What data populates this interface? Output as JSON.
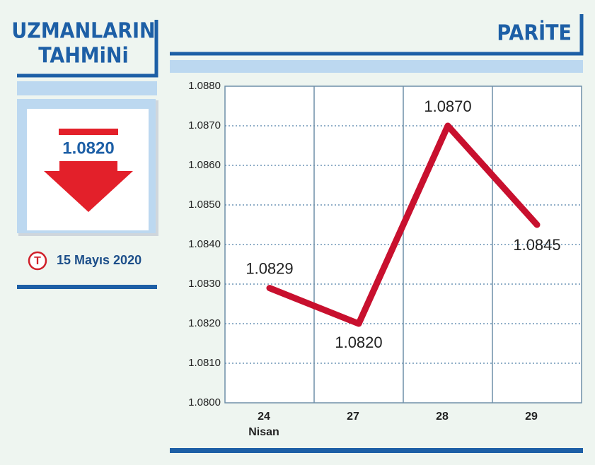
{
  "forecast": {
    "title_lines": [
      "UZMANLARIN",
      "TAHMiNi"
    ],
    "value": "1.0820",
    "logo": "T",
    "date": "15 Mayıs 2020"
  },
  "chart_data": {
    "type": "line",
    "title": "PARİTE",
    "categories": [
      "24",
      "27",
      "28",
      "29"
    ],
    "month_label": "Nisan",
    "series": [
      {
        "name": "PARİTE",
        "color": "#c8102e",
        "values": [
          1.0829,
          1.082,
          1.087,
          1.0845
        ],
        "value_labels": [
          "1.0829",
          "1.0820",
          "1.0870",
          "1.0845"
        ]
      }
    ],
    "ylim": [
      1.08,
      1.088
    ],
    "yticks": [
      {
        "value": 1.08,
        "label": "1.0800"
      },
      {
        "value": 1.081,
        "label": "1.0810"
      },
      {
        "value": 1.082,
        "label": "1.0820"
      },
      {
        "value": 1.083,
        "label": "1.0830"
      },
      {
        "value": 1.084,
        "label": "1.0840"
      },
      {
        "value": 1.085,
        "label": "1.0850"
      },
      {
        "value": 1.086,
        "label": "1.0860"
      },
      {
        "value": 1.087,
        "label": "1.0870"
      },
      {
        "value": 1.088,
        "label": "1.0880"
      }
    ],
    "grid": true
  }
}
